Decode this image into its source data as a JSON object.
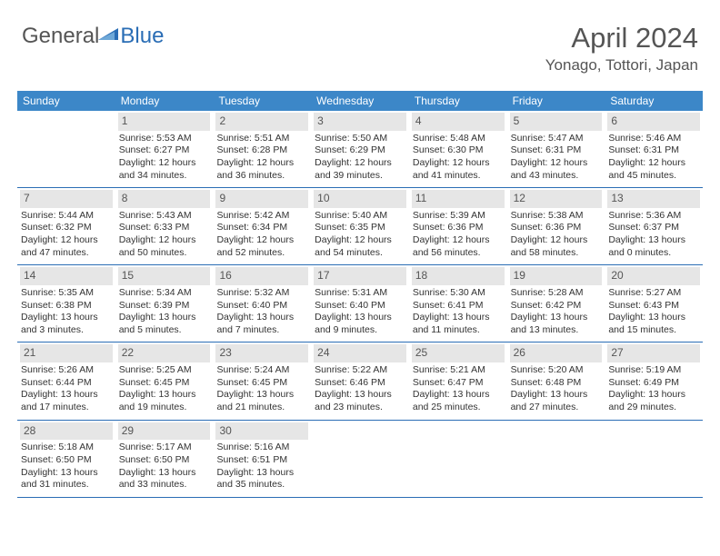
{
  "logo": {
    "part1": "General",
    "part2": "Blue"
  },
  "title": {
    "monthYear": "April 2024",
    "location": "Yonago, Tottori, Japan"
  },
  "colors": {
    "headerBg": "#3c87c8",
    "borderLine": "#2a6db5",
    "dayNumBg": "#e6e6e6",
    "textGray": "#555555",
    "textBody": "#333333"
  },
  "dayHeaders": [
    "Sunday",
    "Monday",
    "Tuesday",
    "Wednesday",
    "Thursday",
    "Friday",
    "Saturday"
  ],
  "weeks": [
    [
      {
        "num": "",
        "sunrise": "",
        "sunset": "",
        "daylight": ""
      },
      {
        "num": "1",
        "sunrise": "Sunrise: 5:53 AM",
        "sunset": "Sunset: 6:27 PM",
        "daylight": "Daylight: 12 hours and 34 minutes."
      },
      {
        "num": "2",
        "sunrise": "Sunrise: 5:51 AM",
        "sunset": "Sunset: 6:28 PM",
        "daylight": "Daylight: 12 hours and 36 minutes."
      },
      {
        "num": "3",
        "sunrise": "Sunrise: 5:50 AM",
        "sunset": "Sunset: 6:29 PM",
        "daylight": "Daylight: 12 hours and 39 minutes."
      },
      {
        "num": "4",
        "sunrise": "Sunrise: 5:48 AM",
        "sunset": "Sunset: 6:30 PM",
        "daylight": "Daylight: 12 hours and 41 minutes."
      },
      {
        "num": "5",
        "sunrise": "Sunrise: 5:47 AM",
        "sunset": "Sunset: 6:31 PM",
        "daylight": "Daylight: 12 hours and 43 minutes."
      },
      {
        "num": "6",
        "sunrise": "Sunrise: 5:46 AM",
        "sunset": "Sunset: 6:31 PM",
        "daylight": "Daylight: 12 hours and 45 minutes."
      }
    ],
    [
      {
        "num": "7",
        "sunrise": "Sunrise: 5:44 AM",
        "sunset": "Sunset: 6:32 PM",
        "daylight": "Daylight: 12 hours and 47 minutes."
      },
      {
        "num": "8",
        "sunrise": "Sunrise: 5:43 AM",
        "sunset": "Sunset: 6:33 PM",
        "daylight": "Daylight: 12 hours and 50 minutes."
      },
      {
        "num": "9",
        "sunrise": "Sunrise: 5:42 AM",
        "sunset": "Sunset: 6:34 PM",
        "daylight": "Daylight: 12 hours and 52 minutes."
      },
      {
        "num": "10",
        "sunrise": "Sunrise: 5:40 AM",
        "sunset": "Sunset: 6:35 PM",
        "daylight": "Daylight: 12 hours and 54 minutes."
      },
      {
        "num": "11",
        "sunrise": "Sunrise: 5:39 AM",
        "sunset": "Sunset: 6:36 PM",
        "daylight": "Daylight: 12 hours and 56 minutes."
      },
      {
        "num": "12",
        "sunrise": "Sunrise: 5:38 AM",
        "sunset": "Sunset: 6:36 PM",
        "daylight": "Daylight: 12 hours and 58 minutes."
      },
      {
        "num": "13",
        "sunrise": "Sunrise: 5:36 AM",
        "sunset": "Sunset: 6:37 PM",
        "daylight": "Daylight: 13 hours and 0 minutes."
      }
    ],
    [
      {
        "num": "14",
        "sunrise": "Sunrise: 5:35 AM",
        "sunset": "Sunset: 6:38 PM",
        "daylight": "Daylight: 13 hours and 3 minutes."
      },
      {
        "num": "15",
        "sunrise": "Sunrise: 5:34 AM",
        "sunset": "Sunset: 6:39 PM",
        "daylight": "Daylight: 13 hours and 5 minutes."
      },
      {
        "num": "16",
        "sunrise": "Sunrise: 5:32 AM",
        "sunset": "Sunset: 6:40 PM",
        "daylight": "Daylight: 13 hours and 7 minutes."
      },
      {
        "num": "17",
        "sunrise": "Sunrise: 5:31 AM",
        "sunset": "Sunset: 6:40 PM",
        "daylight": "Daylight: 13 hours and 9 minutes."
      },
      {
        "num": "18",
        "sunrise": "Sunrise: 5:30 AM",
        "sunset": "Sunset: 6:41 PM",
        "daylight": "Daylight: 13 hours and 11 minutes."
      },
      {
        "num": "19",
        "sunrise": "Sunrise: 5:28 AM",
        "sunset": "Sunset: 6:42 PM",
        "daylight": "Daylight: 13 hours and 13 minutes."
      },
      {
        "num": "20",
        "sunrise": "Sunrise: 5:27 AM",
        "sunset": "Sunset: 6:43 PM",
        "daylight": "Daylight: 13 hours and 15 minutes."
      }
    ],
    [
      {
        "num": "21",
        "sunrise": "Sunrise: 5:26 AM",
        "sunset": "Sunset: 6:44 PM",
        "daylight": "Daylight: 13 hours and 17 minutes."
      },
      {
        "num": "22",
        "sunrise": "Sunrise: 5:25 AM",
        "sunset": "Sunset: 6:45 PM",
        "daylight": "Daylight: 13 hours and 19 minutes."
      },
      {
        "num": "23",
        "sunrise": "Sunrise: 5:24 AM",
        "sunset": "Sunset: 6:45 PM",
        "daylight": "Daylight: 13 hours and 21 minutes."
      },
      {
        "num": "24",
        "sunrise": "Sunrise: 5:22 AM",
        "sunset": "Sunset: 6:46 PM",
        "daylight": "Daylight: 13 hours and 23 minutes."
      },
      {
        "num": "25",
        "sunrise": "Sunrise: 5:21 AM",
        "sunset": "Sunset: 6:47 PM",
        "daylight": "Daylight: 13 hours and 25 minutes."
      },
      {
        "num": "26",
        "sunrise": "Sunrise: 5:20 AM",
        "sunset": "Sunset: 6:48 PM",
        "daylight": "Daylight: 13 hours and 27 minutes."
      },
      {
        "num": "27",
        "sunrise": "Sunrise: 5:19 AM",
        "sunset": "Sunset: 6:49 PM",
        "daylight": "Daylight: 13 hours and 29 minutes."
      }
    ],
    [
      {
        "num": "28",
        "sunrise": "Sunrise: 5:18 AM",
        "sunset": "Sunset: 6:50 PM",
        "daylight": "Daylight: 13 hours and 31 minutes."
      },
      {
        "num": "29",
        "sunrise": "Sunrise: 5:17 AM",
        "sunset": "Sunset: 6:50 PM",
        "daylight": "Daylight: 13 hours and 33 minutes."
      },
      {
        "num": "30",
        "sunrise": "Sunrise: 5:16 AM",
        "sunset": "Sunset: 6:51 PM",
        "daylight": "Daylight: 13 hours and 35 minutes."
      },
      {
        "num": "",
        "sunrise": "",
        "sunset": "",
        "daylight": ""
      },
      {
        "num": "",
        "sunrise": "",
        "sunset": "",
        "daylight": ""
      },
      {
        "num": "",
        "sunrise": "",
        "sunset": "",
        "daylight": ""
      },
      {
        "num": "",
        "sunrise": "",
        "sunset": "",
        "daylight": ""
      }
    ]
  ]
}
